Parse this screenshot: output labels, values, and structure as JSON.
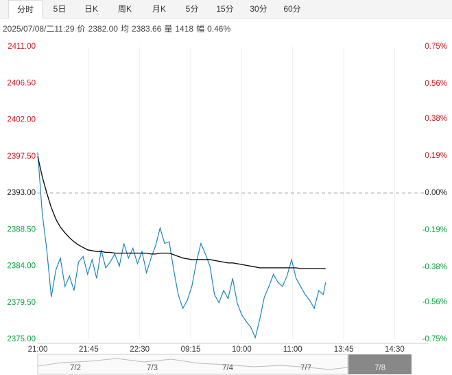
{
  "tabs": [
    "分时",
    "5日",
    "日K",
    "周K",
    "月K",
    "5分",
    "15分",
    "30分",
    "60分"
  ],
  "info": [
    "2025/07/08/二11:29",
    "价",
    "2382.00",
    "均",
    "2383.66",
    "量",
    "1418",
    "幅",
    "0.46%"
  ],
  "chart_data": {
    "type": "line",
    "x": [
      0,
      4,
      8,
      12,
      16,
      20,
      24,
      28,
      32,
      36,
      40,
      44,
      48,
      52,
      56,
      60,
      64,
      68,
      72,
      76,
      80,
      84,
      88,
      92,
      96,
      100,
      104,
      108,
      112,
      116,
      120,
      124,
      128,
      132,
      136,
      140,
      144,
      148,
      152,
      156,
      160,
      164,
      168,
      172,
      176,
      180,
      184,
      188,
      192,
      196,
      200,
      204,
      208,
      212,
      216,
      220,
      224,
      228,
      232,
      236,
      240,
      244,
      248,
      252,
      254
    ],
    "series": [
      {
        "color": "#1a85c9",
        "values": [
          2398.0,
          2390.5,
          2386.0,
          2380.2,
          2383.5,
          2385.0,
          2381.5,
          2382.8,
          2381.0,
          2384.5,
          2385.2,
          2383.0,
          2384.8,
          2382.5,
          2386.0,
          2383.8,
          2384.5,
          2385.5,
          2384.0,
          2386.8,
          2385.0,
          2386.2,
          2384.3,
          2385.8,
          2383.2,
          2385.0,
          2386.5,
          2388.7,
          2386.8,
          2387.0,
          2383.5,
          2380.5,
          2378.8,
          2379.8,
          2381.5,
          2384.5,
          2386.8,
          2385.5,
          2384.0,
          2380.5,
          2379.5,
          2381.0,
          2380.0,
          2382.5,
          2379.5,
          2378.0,
          2377.2,
          2376.5,
          2375.2,
          2377.5,
          2380.2,
          2381.5,
          2383.0,
          2382.0,
          2381.5,
          2382.8,
          2384.8,
          2382.5,
          2381.5,
          2380.5,
          2379.8,
          2378.8,
          2381.0,
          2380.5,
          2382.0
        ]
      },
      {
        "color": "#111111",
        "values": [
          2397.5,
          2395,
          2393,
          2391.2,
          2389.8,
          2388.8,
          2388.1,
          2387.5,
          2387.0,
          2386.6,
          2386.3,
          2386.0,
          2385.9,
          2385.8,
          2385.8,
          2385.7,
          2385.7,
          2385.6,
          2385.6,
          2385.6,
          2385.6,
          2385.6,
          2385.6,
          2385.6,
          2385.6,
          2385.5,
          2385.5,
          2385.6,
          2385.6,
          2385.6,
          2385.4,
          2385.2,
          2385.0,
          2384.9,
          2384.8,
          2384.8,
          2384.8,
          2384.8,
          2384.8,
          2384.7,
          2384.6,
          2384.5,
          2384.4,
          2384.4,
          2384.3,
          2384.2,
          2384.1,
          2384.0,
          2383.9,
          2383.8,
          2383.8,
          2383.8,
          2383.8,
          2383.8,
          2383.8,
          2383.8,
          2383.8,
          2383.8,
          2383.7,
          2383.7,
          2383.7,
          2383.7,
          2383.7,
          2383.7,
          2383.66
        ]
      }
    ],
    "xlim": [
      0,
      345
    ],
    "xticks": [
      {
        "value": 0,
        "label": "21:00"
      },
      {
        "value": 45,
        "label": "21:45"
      },
      {
        "value": 90,
        "label": "22:30"
      },
      {
        "value": 135,
        "label": "09:15"
      },
      {
        "value": 180,
        "label": "10:00"
      },
      {
        "value": 225,
        "label": "11:00"
      },
      {
        "value": 270,
        "label": "13:45"
      },
      {
        "value": 315,
        "label": "14:30"
      }
    ],
    "ylim": [
      2375,
      2411
    ],
    "yticks": [
      {
        "value": 2411,
        "label": "2411.00"
      },
      {
        "value": 2406.5,
        "label": "2406.50"
      },
      {
        "value": 2402,
        "label": "2402.00"
      },
      {
        "value": 2397.5,
        "label": "2397.50"
      },
      {
        "value": 2393,
        "label": "2393.00"
      },
      {
        "value": 2388.5,
        "label": "2388.50"
      },
      {
        "value": 2384,
        "label": "2384.00"
      },
      {
        "value": 2379.5,
        "label": "2379.50"
      },
      {
        "value": 2375,
        "label": "2375.00"
      }
    ],
    "y2lim": [
      -0.75,
      0.75
    ],
    "y2ticks": [
      {
        "value": 0.75,
        "label": "0.75%"
      },
      {
        "value": 0.56,
        "label": "0.56%"
      },
      {
        "value": 0.38,
        "label": "0.38%"
      },
      {
        "value": 0.19,
        "label": "0.19%"
      },
      {
        "value": 0,
        "label": "0.00%"
      },
      {
        "value": -0.19,
        "label": "-0.19%"
      },
      {
        "value": -0.38,
        "label": "-0.38%"
      },
      {
        "value": -0.56,
        "label": "-0.56%"
      },
      {
        "value": -0.75,
        "label": "-0.75%"
      }
    ],
    "baseline": 2393,
    "up_color": "#e4141b",
    "down_color": "#07a73c"
  },
  "navigator": [
    "7/2",
    "7/3",
    "7/4",
    "7/7",
    "7/8"
  ]
}
